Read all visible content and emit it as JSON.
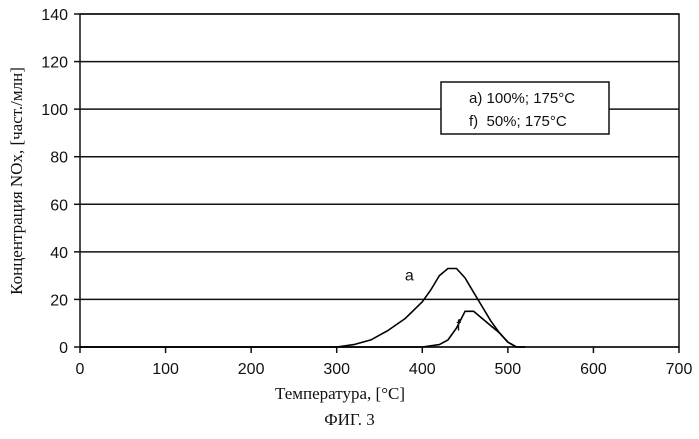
{
  "chart_data": {
    "type": "line",
    "xlabel": "Температура, [°C]",
    "ylabel": "Концентрация NOx, [част./млн]",
    "xlim": [
      0,
      700
    ],
    "ylim": [
      0,
      140
    ],
    "x_ticks": [
      0,
      100,
      200,
      300,
      400,
      500,
      600,
      700
    ],
    "y_ticks": [
      0,
      20,
      40,
      60,
      80,
      100,
      120,
      140
    ],
    "grid": "horizontal",
    "legend_position": "top-right",
    "legend": [
      "a) 100%; 175°C",
      "f)  50%; 175°C"
    ],
    "series": [
      {
        "name": "a",
        "color": "#000000",
        "x": [
          0,
          300,
          320,
          340,
          360,
          380,
          400,
          410,
          420,
          430,
          440,
          450,
          460,
          470,
          480,
          490,
          500,
          510,
          520
        ],
        "y": [
          0,
          0,
          1,
          3,
          7,
          12,
          19,
          24,
          30,
          33,
          33,
          29,
          23,
          17,
          11,
          6,
          2,
          0,
          0
        ]
      },
      {
        "name": "f",
        "color": "#000000",
        "x": [
          0,
          400,
          420,
          430,
          440,
          450,
          460,
          470,
          480,
          490,
          500,
          510,
          520
        ],
        "y": [
          0,
          0,
          1,
          3,
          8,
          15,
          15,
          12,
          9,
          6,
          2,
          0,
          0
        ]
      }
    ]
  },
  "caption": "ФИГ. 3"
}
